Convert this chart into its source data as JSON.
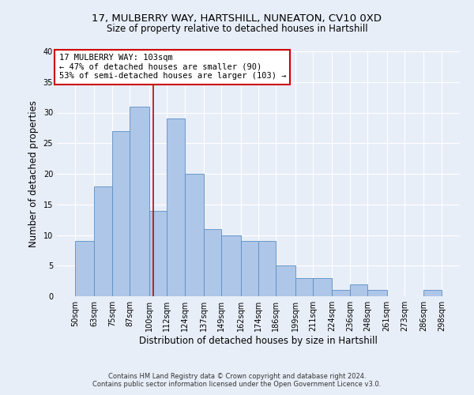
{
  "title_line1": "17, MULBERRY WAY, HARTSHILL, NUNEATON, CV10 0XD",
  "title_line2": "Size of property relative to detached houses in Hartshill",
  "xlabel": "Distribution of detached houses by size in Hartshill",
  "ylabel": "Number of detached properties",
  "footnote1": "Contains HM Land Registry data © Crown copyright and database right 2024.",
  "footnote2": "Contains public sector information licensed under the Open Government Licence v3.0.",
  "annotation_line1": "17 MULBERRY WAY: 103sqm",
  "annotation_line2": "← 47% of detached houses are smaller (90)",
  "annotation_line3": "53% of semi-detached houses are larger (103) →",
  "bar_edges": [
    50,
    63,
    75,
    87,
    100,
    112,
    124,
    137,
    149,
    162,
    174,
    186,
    199,
    211,
    224,
    236,
    248,
    261,
    273,
    286,
    298
  ],
  "bar_heights": [
    9,
    18,
    27,
    31,
    14,
    29,
    20,
    11,
    10,
    9,
    9,
    5,
    3,
    3,
    1,
    2,
    1,
    0,
    0,
    1
  ],
  "bar_color": "#aec6e8",
  "bar_edge_color": "#5a8fc3",
  "vline_x": 103,
  "vline_color": "#cc0000",
  "background_color": "#e8eef8",
  "ylim": [
    0,
    40
  ],
  "yticks": [
    0,
    5,
    10,
    15,
    20,
    25,
    30,
    35,
    40
  ],
  "grid_color": "#ffffff",
  "annotation_box_facecolor": "#ffffff",
  "annotation_box_edgecolor": "#cc0000",
  "title1_fontsize": 9.5,
  "title2_fontsize": 8.5,
  "tick_fontsize": 7,
  "ylabel_fontsize": 8.5,
  "xlabel_fontsize": 8.5,
  "footnote_fontsize": 6,
  "annotation_fontsize": 7.5
}
